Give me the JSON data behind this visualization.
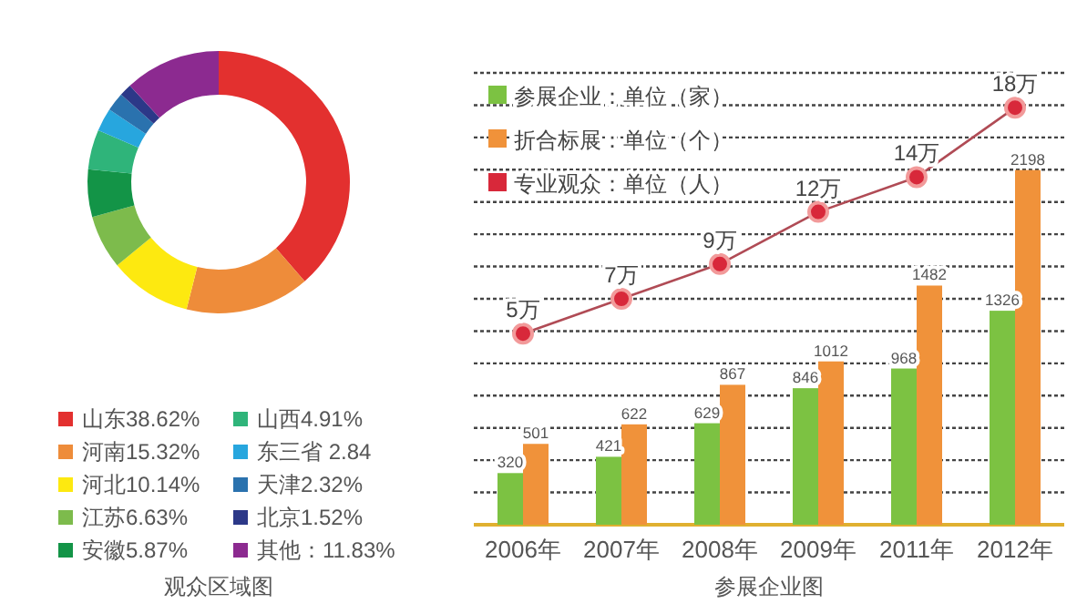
{
  "chart_data": [
    {
      "type": "donut",
      "title": "观众区域图",
      "legend": "bottom",
      "categories": [
        "山东38.62%",
        "河南15.32%",
        "河北10.14%",
        "江苏6.63%",
        "安徽5.87%",
        "山西4.91%",
        "东三省 2.84",
        "天津2.32%",
        "北京1.52%",
        "其他：11.83%"
      ],
      "values": [
        38.62,
        15.32,
        10.14,
        6.63,
        5.87,
        4.91,
        2.84,
        2.32,
        1.52,
        11.83
      ],
      "colors": [
        "#e3302f",
        "#ee8c3a",
        "#fde910",
        "#7dbb4c",
        "#139447",
        "#2fb47a",
        "#27a6de",
        "#2a72ae",
        "#2c3888",
        "#8c2a90"
      ]
    },
    {
      "type": "bar",
      "xlabel": "参展企业图",
      "legend": "top left",
      "grid": "y",
      "data_labels": true,
      "categories": [
        "2006年",
        "2007年",
        "2008年",
        "2009年",
        "2011年",
        "2012年"
      ],
      "ylim": [
        0,
        2800
      ],
      "yticks": [
        {
          "value": 200,
          "label": null
        },
        {
          "value": 400,
          "label": null
        },
        {
          "value": 600,
          "label": null
        },
        {
          "value": 800,
          "label": null
        },
        {
          "value": 1000,
          "label": null
        },
        {
          "value": 1200,
          "label": null
        },
        {
          "value": 1400,
          "label": null
        },
        {
          "value": 1600,
          "label": null
        },
        {
          "value": 1800,
          "label": null
        },
        {
          "value": 2000,
          "label": null
        },
        {
          "value": 2200,
          "label": null
        },
        {
          "value": 2400,
          "label": null
        },
        {
          "value": 2600,
          "label": null
        },
        {
          "value": 2800,
          "label": null
        }
      ],
      "y2lim": [
        -6,
        20
      ],
      "tick_labels": "x",
      "series": [
        {
          "name": "参展企业：单位（家）",
          "color": "#7cc242",
          "values": [
            320,
            421,
            629,
            846,
            968,
            1326
          ]
        },
        {
          "name": "折合标展：单位（个）",
          "color": "#f0923a",
          "values": [
            501,
            622,
            867,
            1012,
            1482,
            2198
          ]
        },
        {
          "name": "专业观众：单位（人）",
          "type": "line",
          "axis": "y2",
          "marker": "circle",
          "color": "#d8283a",
          "values": [
            5,
            7,
            9,
            12,
            14,
            18
          ],
          "value_labels": [
            "5万",
            "7万",
            "9万",
            "12万",
            "14万",
            "18万"
          ]
        }
      ]
    }
  ]
}
